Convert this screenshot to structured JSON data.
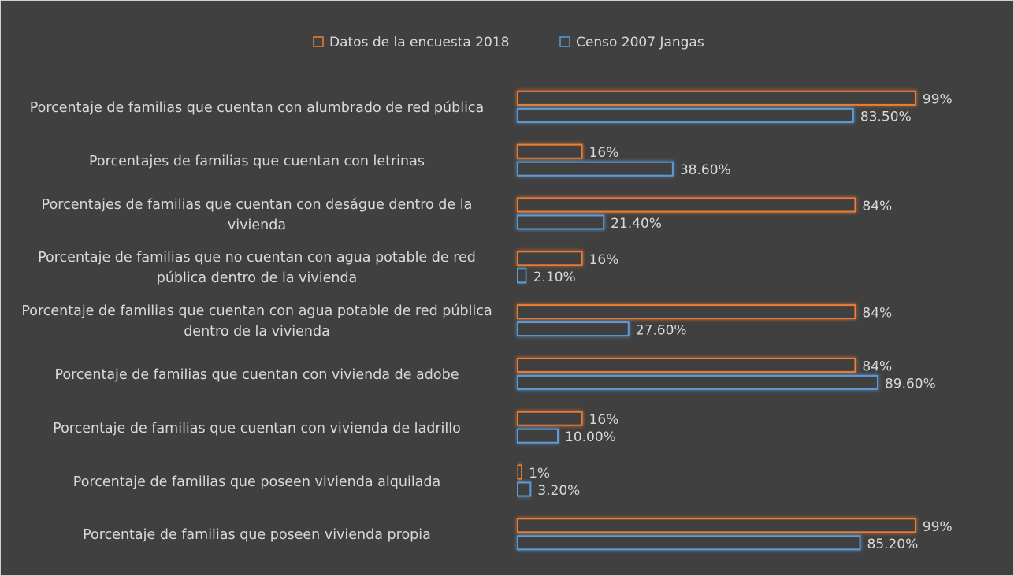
{
  "chart_data": {
    "type": "bar",
    "orientation": "horizontal",
    "categories": [
      "Porcentaje de familias que cuentan con alumbrado de red pública",
      "Porcentajes de familias que cuentan con letrinas",
      "Porcentajes de familias que cuentan con deságue dentro de la vivienda",
      "Porcentaje de familias que no cuentan con agua potable de red pública dentro de la vivienda",
      "Porcentaje de familias que cuentan con agua potable de red pública dentro de la vivienda",
      "Porcentaje de familias que cuentan con vivienda de adobe",
      "Porcentaje de familias que cuentan con vivienda de ladrillo",
      "Porcentaje de familias que poseen vivienda alquilada",
      "Porcentaje de familias que poseen vivienda propia"
    ],
    "series": [
      {
        "name": "Datos de la encuesta 2018",
        "color": "#ed7d31",
        "values": [
          99,
          16,
          84,
          16,
          84,
          84,
          16,
          1,
          99
        ],
        "value_labels": [
          "99%",
          "16%",
          "84%",
          "16%",
          "84%",
          "84%",
          "16%",
          "1%",
          "99%"
        ]
      },
      {
        "name": "Censo 2007 Jangas",
        "color": "#5b9bd5",
        "values": [
          83.5,
          38.6,
          21.4,
          2.1,
          27.6,
          89.6,
          10,
          3.2,
          85.2
        ],
        "value_labels": [
          "83.50%",
          "38.60%",
          "21.40%",
          "2.10%",
          "27.60%",
          "89.60%",
          "10.00%",
          "3.20%",
          "85.20%"
        ]
      }
    ],
    "xlim": [
      0,
      100
    ],
    "legend": "top"
  }
}
